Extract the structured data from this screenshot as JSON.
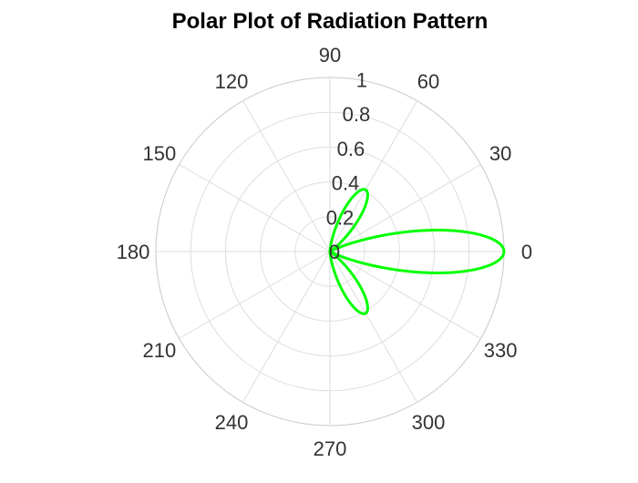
{
  "chart_data": {
    "type": "line",
    "subtype": "polar",
    "title": "Polar Plot of Radiation Pattern",
    "theta_tick_labels": [
      "0",
      "30",
      "60",
      "90",
      "120",
      "150",
      "180",
      "210",
      "240",
      "270",
      "300",
      "330"
    ],
    "r_tick_labels": [
      "0",
      "0.2",
      "0.4",
      "0.6",
      "0.8",
      "1"
    ],
    "rlim": [
      0,
      1
    ],
    "grid": true,
    "series": [
      {
        "color": "#00ff00",
        "pattern": "r = |cos(3*theta)|^2.5 for theta in [-90, 90] degrees (lobes at 0, 60 and 300 degrees with peak ~0.4 at 60/300)",
        "points": [
          {
            "theta": -90,
            "r": 0.0
          },
          {
            "theta": -75,
            "r": 0.0
          },
          {
            "theta": -70,
            "r": 0.02
          },
          {
            "theta": -65,
            "r": 0.08
          },
          {
            "theta": -62,
            "r": 0.22
          },
          {
            "theta": -60,
            "r": 0.41
          },
          {
            "theta": -58,
            "r": 0.22
          },
          {
            "theta": -55,
            "r": 0.08
          },
          {
            "theta": -50,
            "r": 0.02
          },
          {
            "theta": -45,
            "r": 0.0
          },
          {
            "theta": -30,
            "r": 0.0
          },
          {
            "theta": -20,
            "r": 0.06
          },
          {
            "theta": -15,
            "r": 0.22
          },
          {
            "theta": -10,
            "r": 0.55
          },
          {
            "theta": -5,
            "r": 0.86
          },
          {
            "theta": 0,
            "r": 1.0
          },
          {
            "theta": 5,
            "r": 0.86
          },
          {
            "theta": 10,
            "r": 0.55
          },
          {
            "theta": 15,
            "r": 0.22
          },
          {
            "theta": 20,
            "r": 0.06
          },
          {
            "theta": 30,
            "r": 0.0
          },
          {
            "theta": 45,
            "r": 0.0
          },
          {
            "theta": 50,
            "r": 0.02
          },
          {
            "theta": 55,
            "r": 0.08
          },
          {
            "theta": 58,
            "r": 0.22
          },
          {
            "theta": 60,
            "r": 0.41
          },
          {
            "theta": 62,
            "r": 0.22
          },
          {
            "theta": 65,
            "r": 0.08
          },
          {
            "theta": 70,
            "r": 0.02
          },
          {
            "theta": 75,
            "r": 0.0
          },
          {
            "theta": 90,
            "r": 0.0
          }
        ]
      }
    ]
  }
}
